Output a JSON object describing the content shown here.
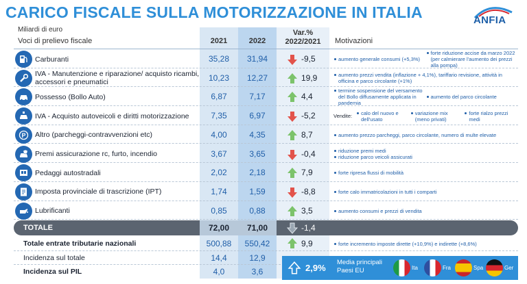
{
  "title": "CARICO FISCALE SULLA MOTORIZZAZIONE IN ITALIA",
  "logo": "ANFIA",
  "subtitle": "Miliardi di euro",
  "headers": {
    "voci": "Voci di prelievo fiscale",
    "y2021": "2021",
    "y2022": "2022",
    "var_line1": "Var.%",
    "var_line2": "2022/2021",
    "motivazioni": "Motivazioni"
  },
  "rows": [
    {
      "icon": "fuel-pump-icon",
      "label": "Carburanti",
      "v2021": "35,28",
      "v2022": "31,94",
      "dir": "down",
      "var": "-9,5",
      "mot": [
        [
          "aumento generale consumi (+5,3%)"
        ],
        [
          "forte riduzione accise da marzo 2022 (per calmierare l'aumento dei prezzi alla pompa)"
        ]
      ]
    },
    {
      "icon": "wrench-icon",
      "label": "IVA - Manutenzione e riparazione/ acquisto ricambi, accessori e pneumatici",
      "v2021": "10,23",
      "v2022": "12,27",
      "dir": "up",
      "var": "19,9",
      "mot": [
        [
          "aumento prezzi vendita (inflazione + 4,1%), tariffario revisione, attività in officina e parco circolante (+1%)"
        ]
      ]
    },
    {
      "icon": "car-icon",
      "label": "Possesso (Bollo Auto)",
      "v2021": "6,87",
      "v2022": "7,17",
      "dir": "up",
      "var": "4,4",
      "mot": [
        [
          "termine sospensione del versamento del Bollo diffusamente applicata in pandemia"
        ],
        [
          "aumento del parco circolante"
        ]
      ]
    },
    {
      "icon": "car-purchase-icon",
      "label": "IVA - Acquisto autoveicoli e diritti motorizzazione",
      "v2021": "7,35",
      "v2022": "6,97",
      "dir": "down",
      "var": "-5,2",
      "prefix": "Vendite:",
      "mot": [
        [
          "calo del nuovo e dell'usato"
        ],
        [
          "variazione mix (meno privati)"
        ],
        [
          "forte rialzo prezzi medi"
        ]
      ]
    },
    {
      "icon": "parking-icon",
      "label": "Altro (parcheggi-contravvenzioni etc)",
      "v2021": "4,00",
      "v2022": "4,35",
      "dir": "up",
      "var": "8,7",
      "mot": [
        [
          "aumento prezzo parcheggi, parco circolante, numero di multe elevate"
        ]
      ]
    },
    {
      "icon": "insurance-icon",
      "label": "Premi assicurazione rc, furto, incendio",
      "v2021": "3,67",
      "v2022": "3,65",
      "dir": "down",
      "var": "-0,4",
      "mot": [
        [
          "riduzione premi medi"
        ],
        [
          "riduzione parco veicoli assicurati"
        ]
      ],
      "stack": true
    },
    {
      "icon": "toll-road-icon",
      "label": "Pedaggi autostradali",
      "v2021": "2,02",
      "v2022": "2,18",
      "dir": "up",
      "var": "7,9",
      "mot": [
        [
          "forte ripresa flussi di mobilità"
        ]
      ]
    },
    {
      "icon": "registration-tax-icon",
      "label": "Imposta provinciale di trascrizione (IPT)",
      "v2021": "1,74",
      "v2022": "1,59",
      "dir": "down",
      "var": "-8,8",
      "mot": [
        [
          "forte calo immatricolazioni in tutti i comparti"
        ]
      ]
    },
    {
      "icon": "oil-can-icon",
      "label": "Lubrificanti",
      "v2021": "0,85",
      "v2022": "0,88",
      "dir": "up",
      "var": "3,5",
      "mot": [
        [
          "aumento consumi e prezzi di vendita"
        ]
      ]
    }
  ],
  "total": {
    "label": "TOTALE",
    "v2021": "72,00",
    "v2022": "71,00",
    "dir": "down",
    "var": "-1,4"
  },
  "entrate": {
    "label": "Totale entrate tributarie nazionali",
    "v2021": "500,88",
    "v2022": "550,42",
    "dir": "up",
    "var": "9,9",
    "mot": "forte incremento imposte dirette (+10,9%) e indirette (+8,6%)"
  },
  "incidenza_totale": {
    "label": "Incidenza sul totale",
    "v2021": "14,4",
    "v2022": "12,9"
  },
  "incidenza_pil": {
    "label": "Incidenza sul PIL",
    "v2021": "4,0",
    "v2022": "3,6"
  },
  "eu": {
    "value": "2,9%",
    "title_line1": "Media principali",
    "title_line2": "Paesi EU",
    "flags": [
      {
        "code": "Ita",
        "colors": [
          "#1e9a46",
          "#ffffff",
          "#d7262e"
        ]
      },
      {
        "code": "Fra",
        "colors": [
          "#2e4fa0",
          "#ffffff",
          "#d7262e"
        ]
      },
      {
        "code": "Spa",
        "colors": [
          "#c9252c",
          "#f6c500",
          "#c9252c"
        ]
      },
      {
        "code": "Ger",
        "colors": [
          "#111111",
          "#d7262e",
          "#f6c500"
        ]
      }
    ]
  },
  "colors": {
    "accent": "#2f8fd8",
    "up": "#7cc36b",
    "down": "#e2534b",
    "icon": "#2468b3"
  }
}
